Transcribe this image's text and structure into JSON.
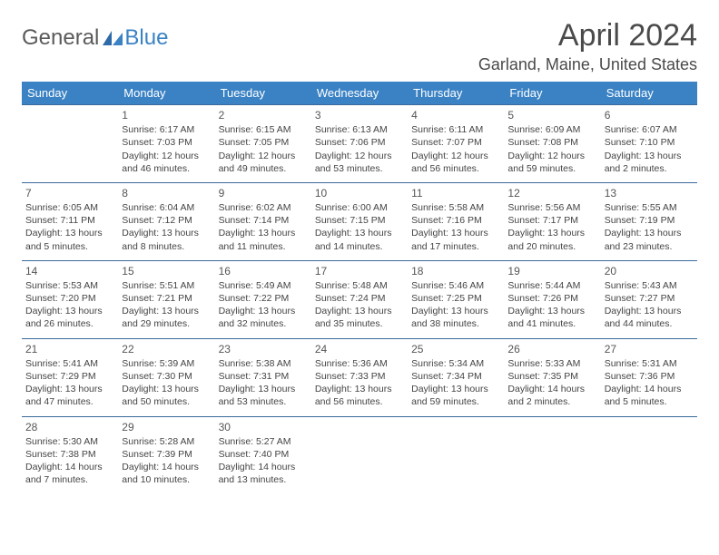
{
  "brand": {
    "part1": "General",
    "part2": "Blue"
  },
  "title": "April 2024",
  "location": "Garland, Maine, United States",
  "colors": {
    "header_bg": "#3a82c4",
    "border": "#3a6a9a",
    "text": "#444444"
  },
  "weekdays": [
    "Sunday",
    "Monday",
    "Tuesday",
    "Wednesday",
    "Thursday",
    "Friday",
    "Saturday"
  ],
  "layout": {
    "first_weekday_index": 1,
    "days_in_month": 30,
    "rows": 5
  },
  "days": [
    {
      "n": 1,
      "sr": "6:17 AM",
      "ss": "7:03 PM",
      "dl": "12 hours and 46 minutes."
    },
    {
      "n": 2,
      "sr": "6:15 AM",
      "ss": "7:05 PM",
      "dl": "12 hours and 49 minutes."
    },
    {
      "n": 3,
      "sr": "6:13 AM",
      "ss": "7:06 PM",
      "dl": "12 hours and 53 minutes."
    },
    {
      "n": 4,
      "sr": "6:11 AM",
      "ss": "7:07 PM",
      "dl": "12 hours and 56 minutes."
    },
    {
      "n": 5,
      "sr": "6:09 AM",
      "ss": "7:08 PM",
      "dl": "12 hours and 59 minutes."
    },
    {
      "n": 6,
      "sr": "6:07 AM",
      "ss": "7:10 PM",
      "dl": "13 hours and 2 minutes."
    },
    {
      "n": 7,
      "sr": "6:05 AM",
      "ss": "7:11 PM",
      "dl": "13 hours and 5 minutes."
    },
    {
      "n": 8,
      "sr": "6:04 AM",
      "ss": "7:12 PM",
      "dl": "13 hours and 8 minutes."
    },
    {
      "n": 9,
      "sr": "6:02 AM",
      "ss": "7:14 PM",
      "dl": "13 hours and 11 minutes."
    },
    {
      "n": 10,
      "sr": "6:00 AM",
      "ss": "7:15 PM",
      "dl": "13 hours and 14 minutes."
    },
    {
      "n": 11,
      "sr": "5:58 AM",
      "ss": "7:16 PM",
      "dl": "13 hours and 17 minutes."
    },
    {
      "n": 12,
      "sr": "5:56 AM",
      "ss": "7:17 PM",
      "dl": "13 hours and 20 minutes."
    },
    {
      "n": 13,
      "sr": "5:55 AM",
      "ss": "7:19 PM",
      "dl": "13 hours and 23 minutes."
    },
    {
      "n": 14,
      "sr": "5:53 AM",
      "ss": "7:20 PM",
      "dl": "13 hours and 26 minutes."
    },
    {
      "n": 15,
      "sr": "5:51 AM",
      "ss": "7:21 PM",
      "dl": "13 hours and 29 minutes."
    },
    {
      "n": 16,
      "sr": "5:49 AM",
      "ss": "7:22 PM",
      "dl": "13 hours and 32 minutes."
    },
    {
      "n": 17,
      "sr": "5:48 AM",
      "ss": "7:24 PM",
      "dl": "13 hours and 35 minutes."
    },
    {
      "n": 18,
      "sr": "5:46 AM",
      "ss": "7:25 PM",
      "dl": "13 hours and 38 minutes."
    },
    {
      "n": 19,
      "sr": "5:44 AM",
      "ss": "7:26 PM",
      "dl": "13 hours and 41 minutes."
    },
    {
      "n": 20,
      "sr": "5:43 AM",
      "ss": "7:27 PM",
      "dl": "13 hours and 44 minutes."
    },
    {
      "n": 21,
      "sr": "5:41 AM",
      "ss": "7:29 PM",
      "dl": "13 hours and 47 minutes."
    },
    {
      "n": 22,
      "sr": "5:39 AM",
      "ss": "7:30 PM",
      "dl": "13 hours and 50 minutes."
    },
    {
      "n": 23,
      "sr": "5:38 AM",
      "ss": "7:31 PM",
      "dl": "13 hours and 53 minutes."
    },
    {
      "n": 24,
      "sr": "5:36 AM",
      "ss": "7:33 PM",
      "dl": "13 hours and 56 minutes."
    },
    {
      "n": 25,
      "sr": "5:34 AM",
      "ss": "7:34 PM",
      "dl": "13 hours and 59 minutes."
    },
    {
      "n": 26,
      "sr": "5:33 AM",
      "ss": "7:35 PM",
      "dl": "14 hours and 2 minutes."
    },
    {
      "n": 27,
      "sr": "5:31 AM",
      "ss": "7:36 PM",
      "dl": "14 hours and 5 minutes."
    },
    {
      "n": 28,
      "sr": "5:30 AM",
      "ss": "7:38 PM",
      "dl": "14 hours and 7 minutes."
    },
    {
      "n": 29,
      "sr": "5:28 AM",
      "ss": "7:39 PM",
      "dl": "14 hours and 10 minutes."
    },
    {
      "n": 30,
      "sr": "5:27 AM",
      "ss": "7:40 PM",
      "dl": "14 hours and 13 minutes."
    }
  ],
  "labels": {
    "sunrise": "Sunrise:",
    "sunset": "Sunset:",
    "daylight": "Daylight:"
  }
}
